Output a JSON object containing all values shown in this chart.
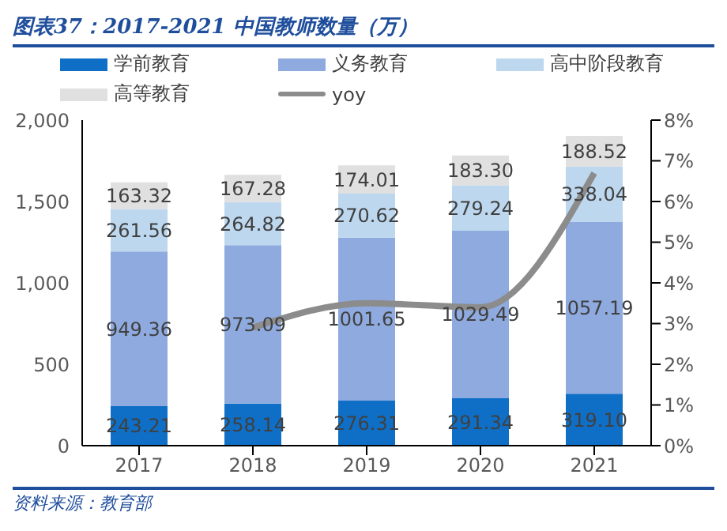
{
  "chart_data": {
    "type": "bar",
    "title": "图表37：2017-2021 中国教师数量（万）",
    "categories": [
      "2017",
      "2018",
      "2019",
      "2020",
      "2021"
    ],
    "stacked": true,
    "legend": "top",
    "grid": false,
    "series": [
      {
        "name": "学前教育",
        "color": "#0f6fc6",
        "values": [
          243.21,
          258.14,
          276.31,
          291.34,
          319.1
        ],
        "value_labels": [
          "243.21",
          "258.14",
          "276.31",
          "291.34",
          "319.10"
        ]
      },
      {
        "name": "义务教育",
        "color": "#8eaadf",
        "values": [
          949.36,
          973.09,
          1001.65,
          1029.49,
          1057.19
        ],
        "value_labels": [
          "949.36",
          "973.09",
          "1001.65",
          "1029.49",
          "1057.19"
        ]
      },
      {
        "name": "高中阶段教育",
        "color": "#bdd7ee",
        "values": [
          261.56,
          264.82,
          270.62,
          279.24,
          338.04
        ],
        "value_labels": [
          "261.56",
          "264.82",
          "270.62",
          "279.24",
          "338.04"
        ]
      },
      {
        "name": "高等教育",
        "color": "#e0e0e0",
        "values": [
          163.32,
          167.28,
          174.01,
          183.3,
          188.52
        ],
        "value_labels": [
          "163.32",
          "167.28",
          "174.01",
          "183.30",
          "188.52"
        ]
      },
      {
        "name": "yoy",
        "type": "line",
        "axis": "y2",
        "color": "#8c8c8c",
        "values": [
          null,
          2.9,
          3.5,
          3.4,
          6.7
        ]
      }
    ],
    "ylim": [
      0,
      2000
    ],
    "yticks": [
      {
        "value": 0,
        "label": "0"
      },
      {
        "value": 500,
        "label": "500"
      },
      {
        "value": 1000,
        "label": "1,000"
      },
      {
        "value": 1500,
        "label": "1,500"
      },
      {
        "value": 2000,
        "label": "2,000"
      }
    ],
    "y2lim": [
      0,
      8
    ],
    "y2ticks": [
      {
        "value": 0,
        "label": "0%"
      },
      {
        "value": 1,
        "label": "1%"
      },
      {
        "value": 2,
        "label": "2%"
      },
      {
        "value": 3,
        "label": "3%"
      },
      {
        "value": 4,
        "label": "4%"
      },
      {
        "value": 5,
        "label": "5%"
      },
      {
        "value": 6,
        "label": "6%"
      },
      {
        "value": 7,
        "label": "7%"
      },
      {
        "value": 8,
        "label": "8%"
      }
    ],
    "annotations": [
      "资料来源：教育部"
    ]
  }
}
